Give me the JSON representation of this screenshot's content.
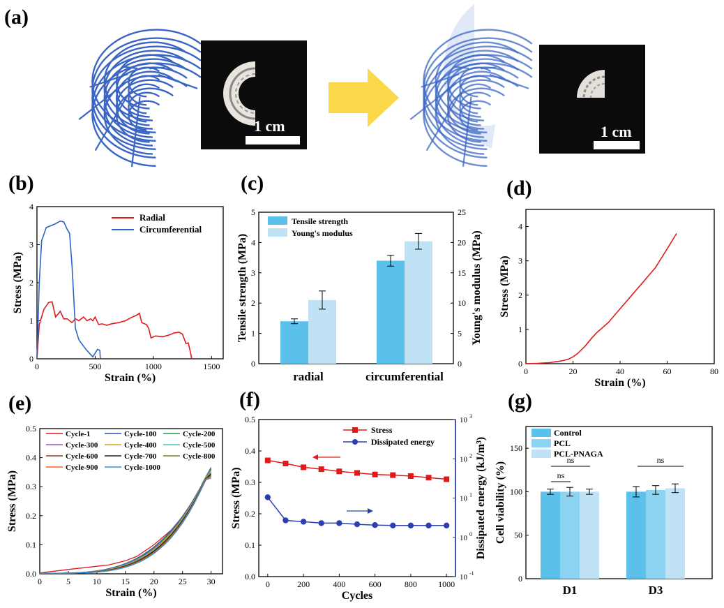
{
  "panel_labels": {
    "a": "(a)",
    "b": "(b)",
    "c": "(c)",
    "d": "(d)",
    "e": "(e)",
    "f": "(f)",
    "g": "(g)"
  },
  "scale_bar_label": "1 cm",
  "colors": {
    "scaffold_blue": "#3b65c4",
    "arrow_yellow": "#fbd84a",
    "red": "#e0191b",
    "blue": "#2b64c4",
    "bar_dark": "#5bc0ea",
    "bar_light": "#bfe3f5",
    "bar_mid": "#8dd3f2"
  },
  "chart_data": [
    {
      "id": "b",
      "type": "line",
      "xlabel": "Strain (%)",
      "ylabel": "Stress (MPa)",
      "xlim": [
        0,
        1600
      ],
      "ylim": [
        0,
        4
      ],
      "xticks": [
        "0",
        "500",
        "1000",
        "1500"
      ],
      "yticks": [
        "0",
        "1",
        "2",
        "3",
        "4"
      ],
      "legend_position": "top-right",
      "series": [
        {
          "name": "Radial",
          "color": "#e0191b",
          "points": [
            [
              0,
              0
            ],
            [
              20,
              0.9
            ],
            [
              60,
              1.3
            ],
            [
              100,
              1.48
            ],
            [
              130,
              1.5
            ],
            [
              160,
              1.1
            ],
            [
              200,
              1.25
            ],
            [
              230,
              1.05
            ],
            [
              260,
              1.05
            ],
            [
              300,
              0.95
            ],
            [
              330,
              1.05
            ],
            [
              360,
              1.0
            ],
            [
              400,
              1.1
            ],
            [
              430,
              1.0
            ],
            [
              460,
              1.05
            ],
            [
              480,
              1.0
            ],
            [
              500,
              1.1
            ],
            [
              530,
              0.9
            ],
            [
              560,
              0.92
            ],
            [
              600,
              0.88
            ],
            [
              640,
              0.92
            ],
            [
              700,
              0.95
            ],
            [
              760,
              1.0
            ],
            [
              820,
              1.1
            ],
            [
              860,
              1.15
            ],
            [
              880,
              1.2
            ],
            [
              900,
              0.95
            ],
            [
              940,
              0.9
            ],
            [
              960,
              0.8
            ],
            [
              980,
              0.55
            ],
            [
              1020,
              0.6
            ],
            [
              1080,
              0.58
            ],
            [
              1130,
              0.62
            ],
            [
              1180,
              0.68
            ],
            [
              1220,
              0.7
            ],
            [
              1250,
              0.65
            ],
            [
              1280,
              0.4
            ],
            [
              1300,
              0.42
            ],
            [
              1320,
              0.15
            ],
            [
              1330,
              0
            ]
          ]
        },
        {
          "name": "Circumferential",
          "color": "#2b64c4",
          "points": [
            [
              0,
              0
            ],
            [
              20,
              2.0
            ],
            [
              40,
              3.1
            ],
            [
              80,
              3.45
            ],
            [
              120,
              3.5
            ],
            [
              160,
              3.55
            ],
            [
              200,
              3.62
            ],
            [
              230,
              3.6
            ],
            [
              260,
              3.4
            ],
            [
              280,
              3.3
            ],
            [
              300,
              2.5
            ],
            [
              330,
              0.8
            ],
            [
              360,
              0.5
            ],
            [
              420,
              0.25
            ],
            [
              480,
              0.05
            ],
            [
              520,
              0.25
            ],
            [
              540,
              0.22
            ],
            [
              545,
              0
            ]
          ]
        }
      ]
    },
    {
      "id": "c",
      "type": "bar",
      "categories": [
        "radial",
        "circumferential"
      ],
      "ylabel": "Tensile strength (MPa)",
      "y2label": "Young's modulus (MPa)",
      "ylim": [
        0,
        5
      ],
      "y2lim": [
        0,
        25
      ],
      "yticks": [
        "0",
        "1",
        "2",
        "3",
        "4",
        "5"
      ],
      "y2ticks": [
        "0",
        "5",
        "10",
        "15",
        "20",
        "25"
      ],
      "legend_position": "top-left",
      "series": [
        {
          "name": "Tensile strength",
          "axis": "left",
          "color": "#5bc0ea",
          "values": [
            1.4,
            3.4
          ],
          "errors": [
            0.08,
            0.18
          ]
        },
        {
          "name": "Young's modulus",
          "axis": "right",
          "color": "#bfe3f5",
          "values": [
            10.5,
            20.2
          ],
          "errors": [
            1.5,
            1.3
          ]
        }
      ]
    },
    {
      "id": "d",
      "type": "line",
      "xlabel": "Strain (%)",
      "ylabel": "Stress (MPa)",
      "xlim": [
        0,
        80
      ],
      "ylim": [
        0,
        4.5
      ],
      "xticks": [
        "0",
        "20",
        "40",
        "60",
        "80"
      ],
      "yticks": [
        "0",
        "1",
        "2",
        "3",
        "4"
      ],
      "series": [
        {
          "color": "#e0191b",
          "points": [
            [
              0,
              0
            ],
            [
              5,
              0.01
            ],
            [
              10,
              0.03
            ],
            [
              15,
              0.08
            ],
            [
              18,
              0.13
            ],
            [
              20,
              0.2
            ],
            [
              22,
              0.3
            ],
            [
              25,
              0.5
            ],
            [
              28,
              0.75
            ],
            [
              30,
              0.9
            ],
            [
              35,
              1.2
            ],
            [
              40,
              1.6
            ],
            [
              45,
              2.0
            ],
            [
              50,
              2.4
            ],
            [
              55,
              2.8
            ],
            [
              60,
              3.35
            ],
            [
              64,
              3.8
            ]
          ]
        }
      ]
    },
    {
      "id": "e",
      "type": "line",
      "xlabel": "Strain (%)",
      "ylabel": "Stress (MPa)",
      "xlim": [
        0,
        32
      ],
      "ylim": [
        0,
        0.5
      ],
      "xticks": [
        "0",
        "5",
        "10",
        "15",
        "20",
        "25",
        "30"
      ],
      "yticks": [
        "0.0",
        "0.1",
        "0.2",
        "0.3",
        "0.4",
        "0.5"
      ],
      "legend_position": "top-left",
      "series": [
        {
          "name": "Cycle-1",
          "color": "#e0191b"
        },
        {
          "name": "Cycle-100",
          "color": "#2b4fc0"
        },
        {
          "name": "Cycle-200",
          "color": "#1f9e3a"
        },
        {
          "name": "Cycle-300",
          "color": "#9b4fc8"
        },
        {
          "name": "Cycle-400",
          "color": "#d8a316"
        },
        {
          "name": "Cycle-500",
          "color": "#3bc0c4"
        },
        {
          "name": "Cycle-600",
          "color": "#8a3a1a"
        },
        {
          "name": "Cycle-700",
          "color": "#1a1a1a"
        },
        {
          "name": "Cycle-800",
          "color": "#7a7a1a"
        },
        {
          "name": "Cycle-900",
          "color": "#ff5a1a"
        },
        {
          "name": "Cycle-1000",
          "color": "#2f8fd8"
        }
      ]
    },
    {
      "id": "f",
      "type": "line",
      "xlabel": "Cycles",
      "ylabel": "Stress (MPa)",
      "y2label": "Dissipated energy (kJ/m³)",
      "xlim": [
        -50,
        1050
      ],
      "ylim": [
        0,
        0.5
      ],
      "y2lim_log10": [
        -1,
        3
      ],
      "xticks": [
        "0",
        "200",
        "400",
        "600",
        "800",
        "1000"
      ],
      "yticks": [
        "0.0",
        "0.1",
        "0.2",
        "0.3",
        "0.4",
        "0.5"
      ],
      "y2ticks": [
        "10",
        "10",
        "10",
        "10",
        "10"
      ],
      "y2tick_exponents": [
        "-1",
        "0",
        "1",
        "2",
        "3"
      ],
      "legend_position": "top-right",
      "x": [
        0,
        100,
        200,
        300,
        400,
        500,
        600,
        700,
        800,
        900,
        1000
      ],
      "series": [
        {
          "name": "Stress",
          "axis": "left",
          "color": "#e0191b",
          "marker": "square",
          "values": [
            0.37,
            0.36,
            0.348,
            0.342,
            0.335,
            0.33,
            0.325,
            0.323,
            0.32,
            0.315,
            0.31
          ]
        },
        {
          "name": "Dissipated energy",
          "axis": "right",
          "color": "#2b3fb0",
          "marker": "circle",
          "values": [
            10.5,
            2.7,
            2.5,
            2.3,
            2.3,
            2.15,
            2.05,
            2.0,
            2.0,
            2.0,
            2.0
          ]
        }
      ]
    },
    {
      "id": "g",
      "type": "bar",
      "categories": [
        "D1",
        "D3"
      ],
      "ylabel": "Cell viability (%)",
      "ylim": [
        0,
        175
      ],
      "yticks": [
        "0",
        "50",
        "100",
        "150"
      ],
      "legend_position": "top-left",
      "series": [
        {
          "name": "Control",
          "color": "#5bc0ea",
          "values": [
            100,
            100
          ],
          "errors": [
            3,
            6
          ]
        },
        {
          "name": "PCL",
          "color": "#8dd3f2",
          "values": [
            100,
            102
          ],
          "errors": [
            5,
            5
          ]
        },
        {
          "name": "PCL-PNAGA",
          "color": "#bfe3f5",
          "values": [
            100,
            104
          ],
          "errors": [
            3,
            5
          ]
        }
      ],
      "annotations": [
        "ns",
        "ns",
        "ns"
      ]
    }
  ]
}
